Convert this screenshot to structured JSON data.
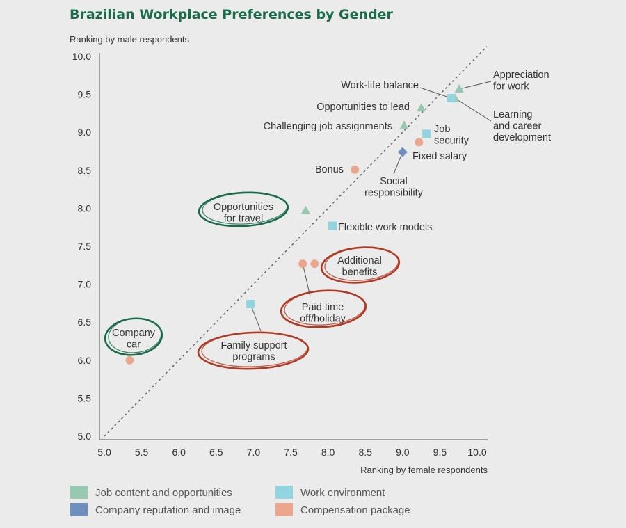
{
  "colors": {
    "title": "#1a6b49",
    "diagonal": "#666666",
    "circle_green": "#1a6b49",
    "circle_red": "#b03a24",
    "categories": {
      "Job content and opportunities": "#96c8b2",
      "Work environment": "#92d4e0",
      "Company reputation and image": "#6f8fbf",
      "Compensation package": "#eba68d"
    }
  },
  "chart_data": {
    "type": "scatter",
    "title": "Brazilian Workplace Preferences by Gender",
    "xlabel": "Ranking by female respondents",
    "ylabel": "Ranking by male respondents",
    "xlim": [
      5.0,
      10.0
    ],
    "ylim": [
      5.0,
      10.0
    ],
    "x_ticks": [
      "5.0",
      "5.5",
      "6.0",
      "6.5",
      "7.0",
      "7.5",
      "8.0",
      "8.5",
      "9.0",
      "9.5",
      "10.0"
    ],
    "y_ticks": [
      "5.0",
      "5.5",
      "6.0",
      "6.5",
      "7.0",
      "7.5",
      "8.0",
      "8.5",
      "9.0",
      "9.5",
      "10.0"
    ],
    "reference_line": "y = x",
    "legend_position": "bottom",
    "legend": [
      {
        "name": "Job content and opportunities",
        "marker": "triangle"
      },
      {
        "name": "Work environment",
        "marker": "square"
      },
      {
        "name": "Company reputation and image",
        "marker": "diamond"
      },
      {
        "name": "Compensation package",
        "marker": "circle"
      }
    ],
    "points": [
      {
        "id": "appreciation",
        "label": "Appreciation for work",
        "category": "Job content and opportunities",
        "x": 9.76,
        "y": 9.57
      },
      {
        "id": "learning",
        "label": "Learning and career development",
        "category": "Job content and opportunities",
        "x": 9.7,
        "y": 9.45
      },
      {
        "id": "worklife",
        "label": "Work-life balance",
        "category": "Work environment",
        "x": 9.65,
        "y": 9.45
      },
      {
        "id": "opplead",
        "label": "Opportunities to lead",
        "category": "Job content and opportunities",
        "x": 9.25,
        "y": 9.32
      },
      {
        "id": "challenging",
        "label": "Challenging job assignments",
        "category": "Job content and opportunities",
        "x": 9.02,
        "y": 9.09
      },
      {
        "id": "jobsecurity",
        "label": "Job security",
        "category": "Work environment",
        "x": 9.32,
        "y": 8.98
      },
      {
        "id": "fixedsalary",
        "label": "Fixed salary",
        "category": "Compensation package",
        "x": 9.22,
        "y": 8.87
      },
      {
        "id": "social",
        "label": "Social responsibility",
        "category": "Company reputation and image",
        "x": 9.0,
        "y": 8.74
      },
      {
        "id": "bonus",
        "label": "Bonus",
        "category": "Compensation package",
        "x": 8.36,
        "y": 8.51
      },
      {
        "id": "travel",
        "label": "Opportunities for travel",
        "category": "Job content and opportunities",
        "x": 7.7,
        "y": 7.97
      },
      {
        "id": "flexible",
        "label": "Flexible work models",
        "category": "Work environment",
        "x": 8.06,
        "y": 7.77
      },
      {
        "id": "additional",
        "label": "Additional benefits",
        "category": "Compensation package",
        "x": 7.82,
        "y": 7.27
      },
      {
        "id": "paidtime",
        "label": "Paid time off/holiday",
        "category": "Compensation package",
        "x": 7.66,
        "y": 7.27
      },
      {
        "id": "familysupport",
        "label": "Family support programs",
        "category": "Work environment",
        "x": 6.96,
        "y": 6.74
      },
      {
        "id": "companycar",
        "label": "Company car",
        "category": "Compensation package",
        "x": 5.34,
        "y": 6.0
      }
    ],
    "label_lines": {
      "appreciation": [
        "Appreciation",
        "for work"
      ],
      "learning": [
        "Learning",
        "and career",
        "development"
      ],
      "worklife": [
        "Work-life balance"
      ],
      "opplead": [
        "Opportunities to lead"
      ],
      "challenging": [
        "Challenging job assignments"
      ],
      "jobsecurity": [
        "Job",
        "security"
      ],
      "fixedsalary": [
        "Fixed salary"
      ],
      "social": [
        "Social",
        "responsibility"
      ],
      "bonus": [
        "Bonus"
      ],
      "travel": [
        "Opportunities",
        "for travel"
      ],
      "flexible": [
        "Flexible work models"
      ],
      "additional": [
        "Additional",
        "benefits"
      ],
      "paidtime": [
        "Paid time",
        "off/holiday"
      ],
      "familysupport": [
        "Family support",
        "programs"
      ],
      "companycar": [
        "Company",
        "car"
      ]
    },
    "highlighted_green": [
      "travel",
      "companycar"
    ],
    "highlighted_red": [
      "additional",
      "paidtime",
      "familysupport"
    ]
  }
}
